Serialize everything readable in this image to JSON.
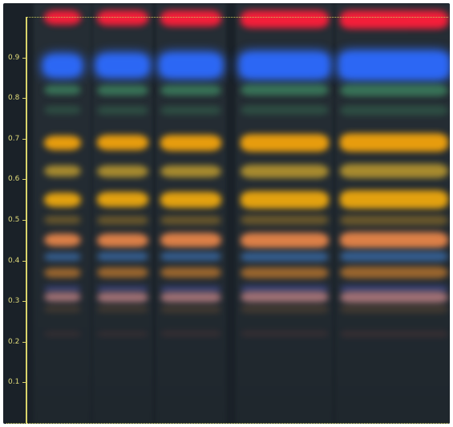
{
  "image": {
    "description_colors": {
      "background": "#1a2128",
      "lane": "#242c33",
      "scale": "#d9d36b"
    }
  },
  "scale": {
    "ticks": [
      "0.1",
      "0.2",
      "0.3",
      "0.4",
      "0.5",
      "0.6",
      "0.7",
      "0.8",
      "0.9"
    ]
  },
  "lanes": [
    {
      "name": "lane-1"
    },
    {
      "name": "lane-2"
    },
    {
      "name": "lane-3"
    },
    {
      "name": "lane-4"
    },
    {
      "name": "lane-5"
    }
  ],
  "bands": [
    {
      "rf": 1.0,
      "color": "#ff1e3a",
      "name": "red-band"
    },
    {
      "rf": 0.88,
      "color": "#2d6bff",
      "name": "blue-band"
    },
    {
      "rf": 0.82,
      "color": "#3f8a63",
      "name": "green-band-upper"
    },
    {
      "rf": 0.77,
      "color": "#35684f",
      "name": "green-band-lower"
    },
    {
      "rf": 0.69,
      "color": "#f2a30c",
      "name": "orange-band-1"
    },
    {
      "rf": 0.62,
      "color": "#c9a32e",
      "name": "olive-band"
    },
    {
      "rf": 0.55,
      "color": "#eda80e",
      "name": "orange-band-2"
    },
    {
      "rf": 0.5,
      "color": "#a27b27",
      "name": "brown-band"
    },
    {
      "rf": 0.45,
      "color": "#f0894a",
      "name": "salmon-band"
    },
    {
      "rf": 0.41,
      "color": "#3d73b5",
      "name": "blue-band-lower"
    },
    {
      "rf": 0.37,
      "color": "#c37a2d",
      "name": "amber-band"
    },
    {
      "rf": 0.33,
      "color": "#444f9a",
      "name": "indigo-band"
    },
    {
      "rf": 0.31,
      "color": "#c8878a",
      "name": "pink-band"
    },
    {
      "rf": 0.28,
      "color": "#6b4e33",
      "name": "faint-brown-band"
    },
    {
      "rf": 0.22,
      "color": "#5c3a38",
      "name": "faint-maroon-band"
    }
  ]
}
